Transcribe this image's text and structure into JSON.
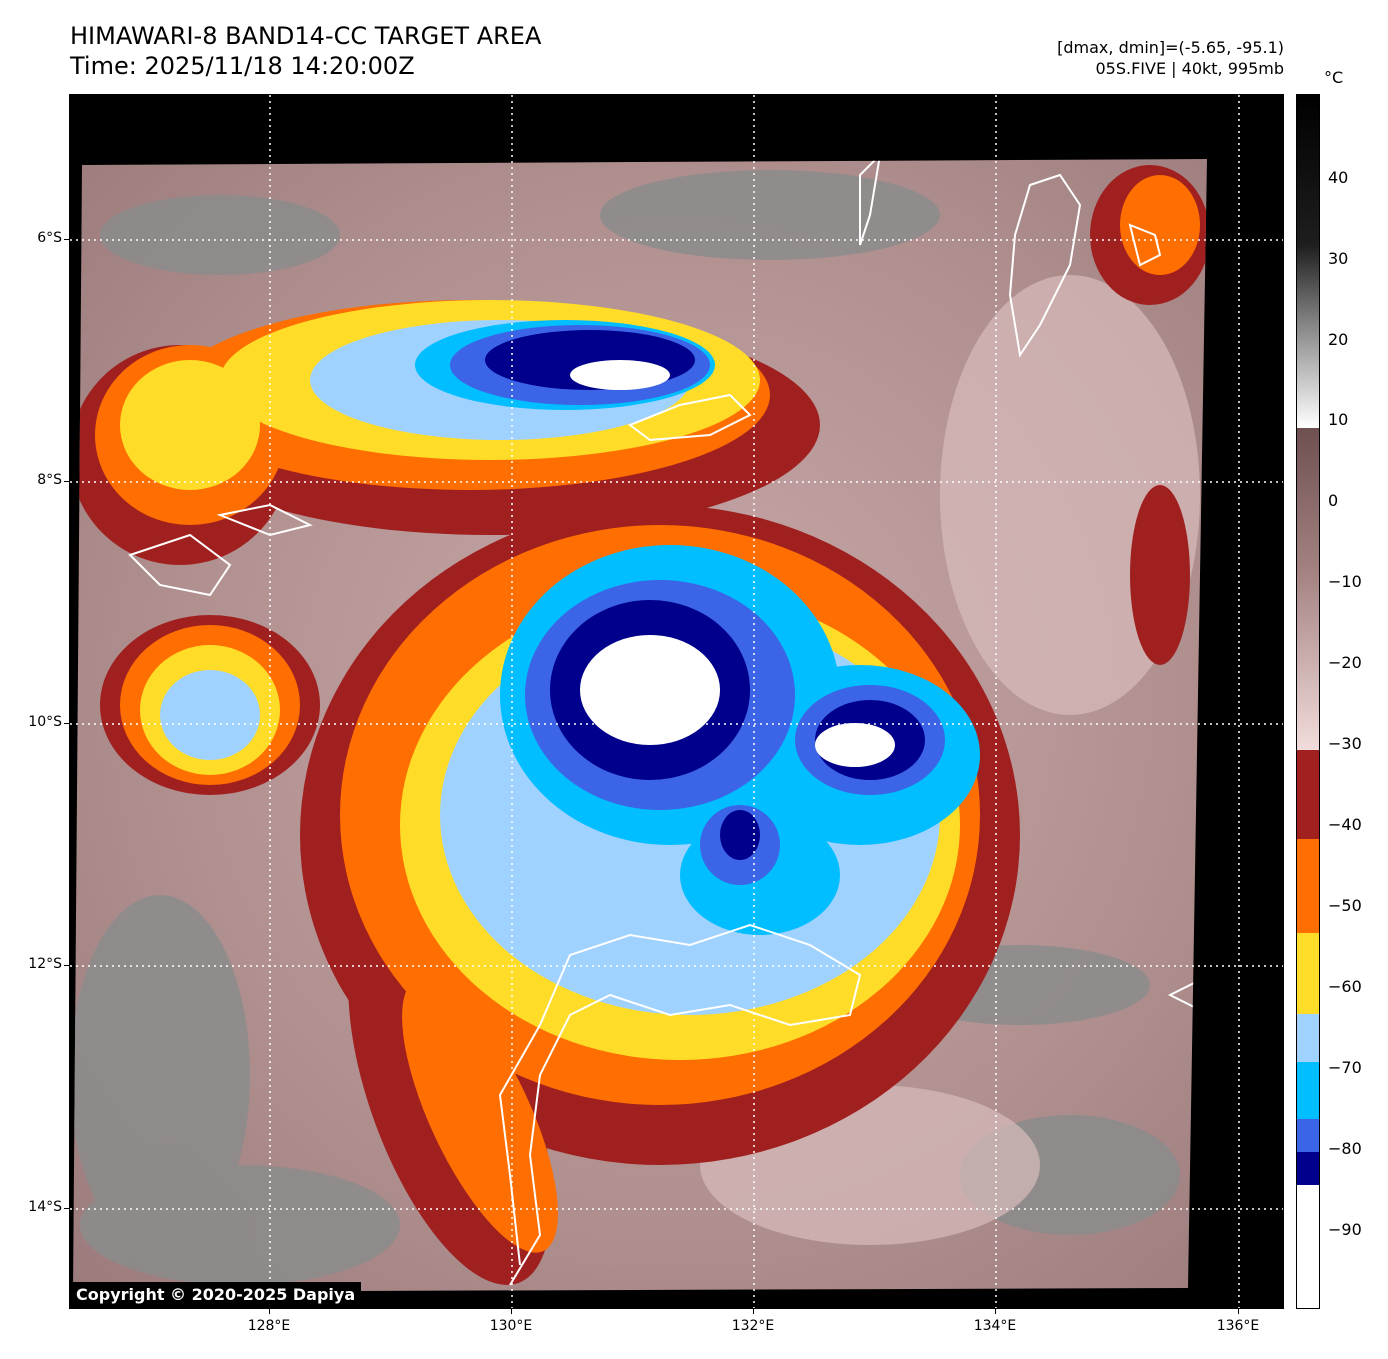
{
  "header": {
    "title_line1": "HIMAWARI-8 BAND14-CC TARGET AREA",
    "title_line2": "Time: 2025/11/18 14:20:00Z",
    "range_text": "[dmax, dmin]=(-5.65, -95.1)",
    "storm_text": "05S.FIVE | 40kt, 995mb"
  },
  "map": {
    "lat_ticks": [
      "6°S",
      "8°S",
      "10°S",
      "12°S",
      "14°S"
    ],
    "lon_ticks": [
      "128°E",
      "130°E",
      "132°E",
      "134°E",
      "136°E"
    ],
    "copyright": "Copyright © 2020-2025 Dapiya",
    "colors": {
      "background": "#000000",
      "warm_cloud": "#b99898",
      "coastline": "#ffffff",
      "gridline": "#ffffff"
    }
  },
  "colorbar": {
    "unit": "°C",
    "labels": [
      "40",
      "30",
      "20",
      "10",
      "0",
      "−10",
      "−20",
      "−30",
      "−40",
      "−50",
      "−60",
      "−70",
      "−80",
      "−90"
    ],
    "bands": [
      {
        "color": "#ffffff",
        "range": "below -84"
      },
      {
        "color": "#00008c",
        "range": "-84 to -80"
      },
      {
        "color": "#3c64e6",
        "range": "-80 to -76"
      },
      {
        "color": "#00beff",
        "range": "-76 to -70"
      },
      {
        "color": "#a0d2ff",
        "range": "-70 to -60"
      },
      {
        "color": "#ffdc28",
        "range": "-60 to -50"
      },
      {
        "color": "#ff6e00",
        "range": "-50 to -42"
      },
      {
        "color": "#a02020",
        "range": "-42 to -31"
      }
    ]
  }
}
